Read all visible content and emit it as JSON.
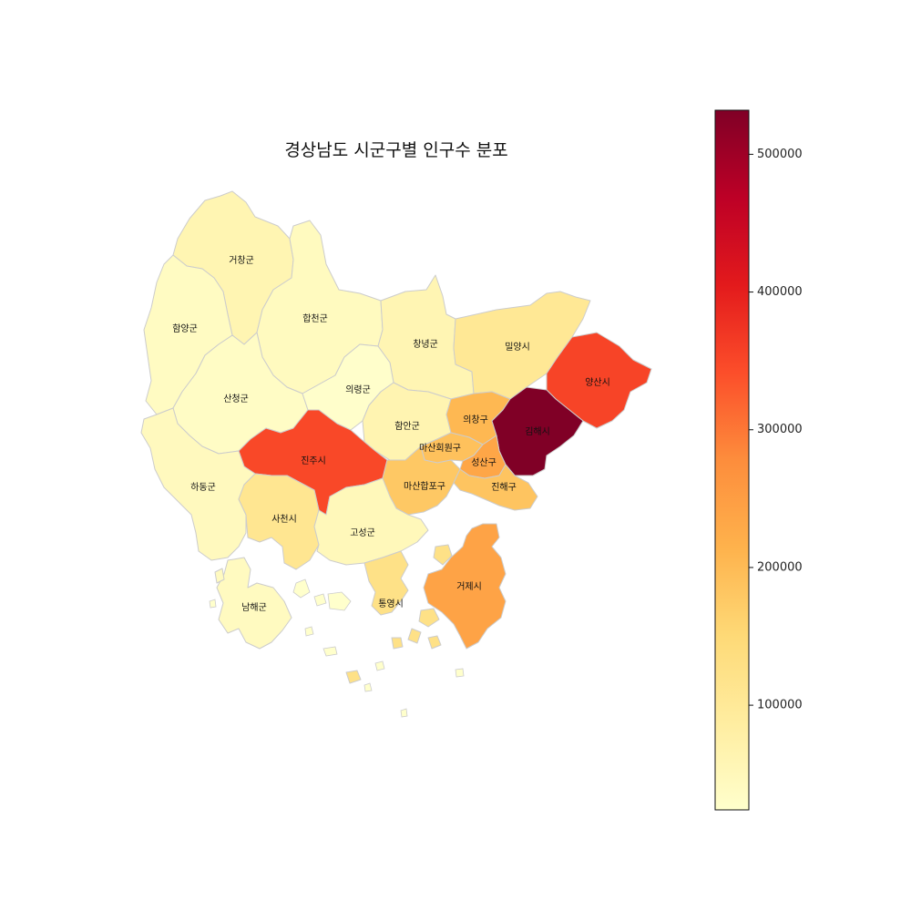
{
  "title": "경상남도 시군구별 인구수 분포",
  "colormap": {
    "name": "YlOrRd",
    "min": 24000,
    "max": 532000,
    "ticks": [
      "100000",
      "200000",
      "300000",
      "400000",
      "500000"
    ],
    "tick_values": [
      100000,
      200000,
      300000,
      400000,
      500000
    ]
  },
  "regions": [
    {
      "name": "거창군",
      "population": 61000
    },
    {
      "name": "함양군",
      "population": 38000
    },
    {
      "name": "합천군",
      "population": 43000
    },
    {
      "name": "창녕군",
      "population": 60000
    },
    {
      "name": "밀양시",
      "population": 104000
    },
    {
      "name": "양산시",
      "population": 354000
    },
    {
      "name": "산청군",
      "population": 34000
    },
    {
      "name": "의령군",
      "population": 26000
    },
    {
      "name": "함안군",
      "population": 63000
    },
    {
      "name": "의창구",
      "population": 205000
    },
    {
      "name": "김해시",
      "population": 532000
    },
    {
      "name": "진주시",
      "population": 349000
    },
    {
      "name": "마산회원구",
      "population": 190000
    },
    {
      "name": "성산구",
      "population": 235000
    },
    {
      "name": "하동군",
      "population": 44000
    },
    {
      "name": "마산합포구",
      "population": 178000
    },
    {
      "name": "진해구",
      "population": 185000
    },
    {
      "name": "사천시",
      "population": 110000
    },
    {
      "name": "고성군",
      "population": 50000
    },
    {
      "name": "거제시",
      "population": 240000
    },
    {
      "name": "통영시",
      "population": 125000
    },
    {
      "name": "남해군",
      "population": 42000
    }
  ]
}
